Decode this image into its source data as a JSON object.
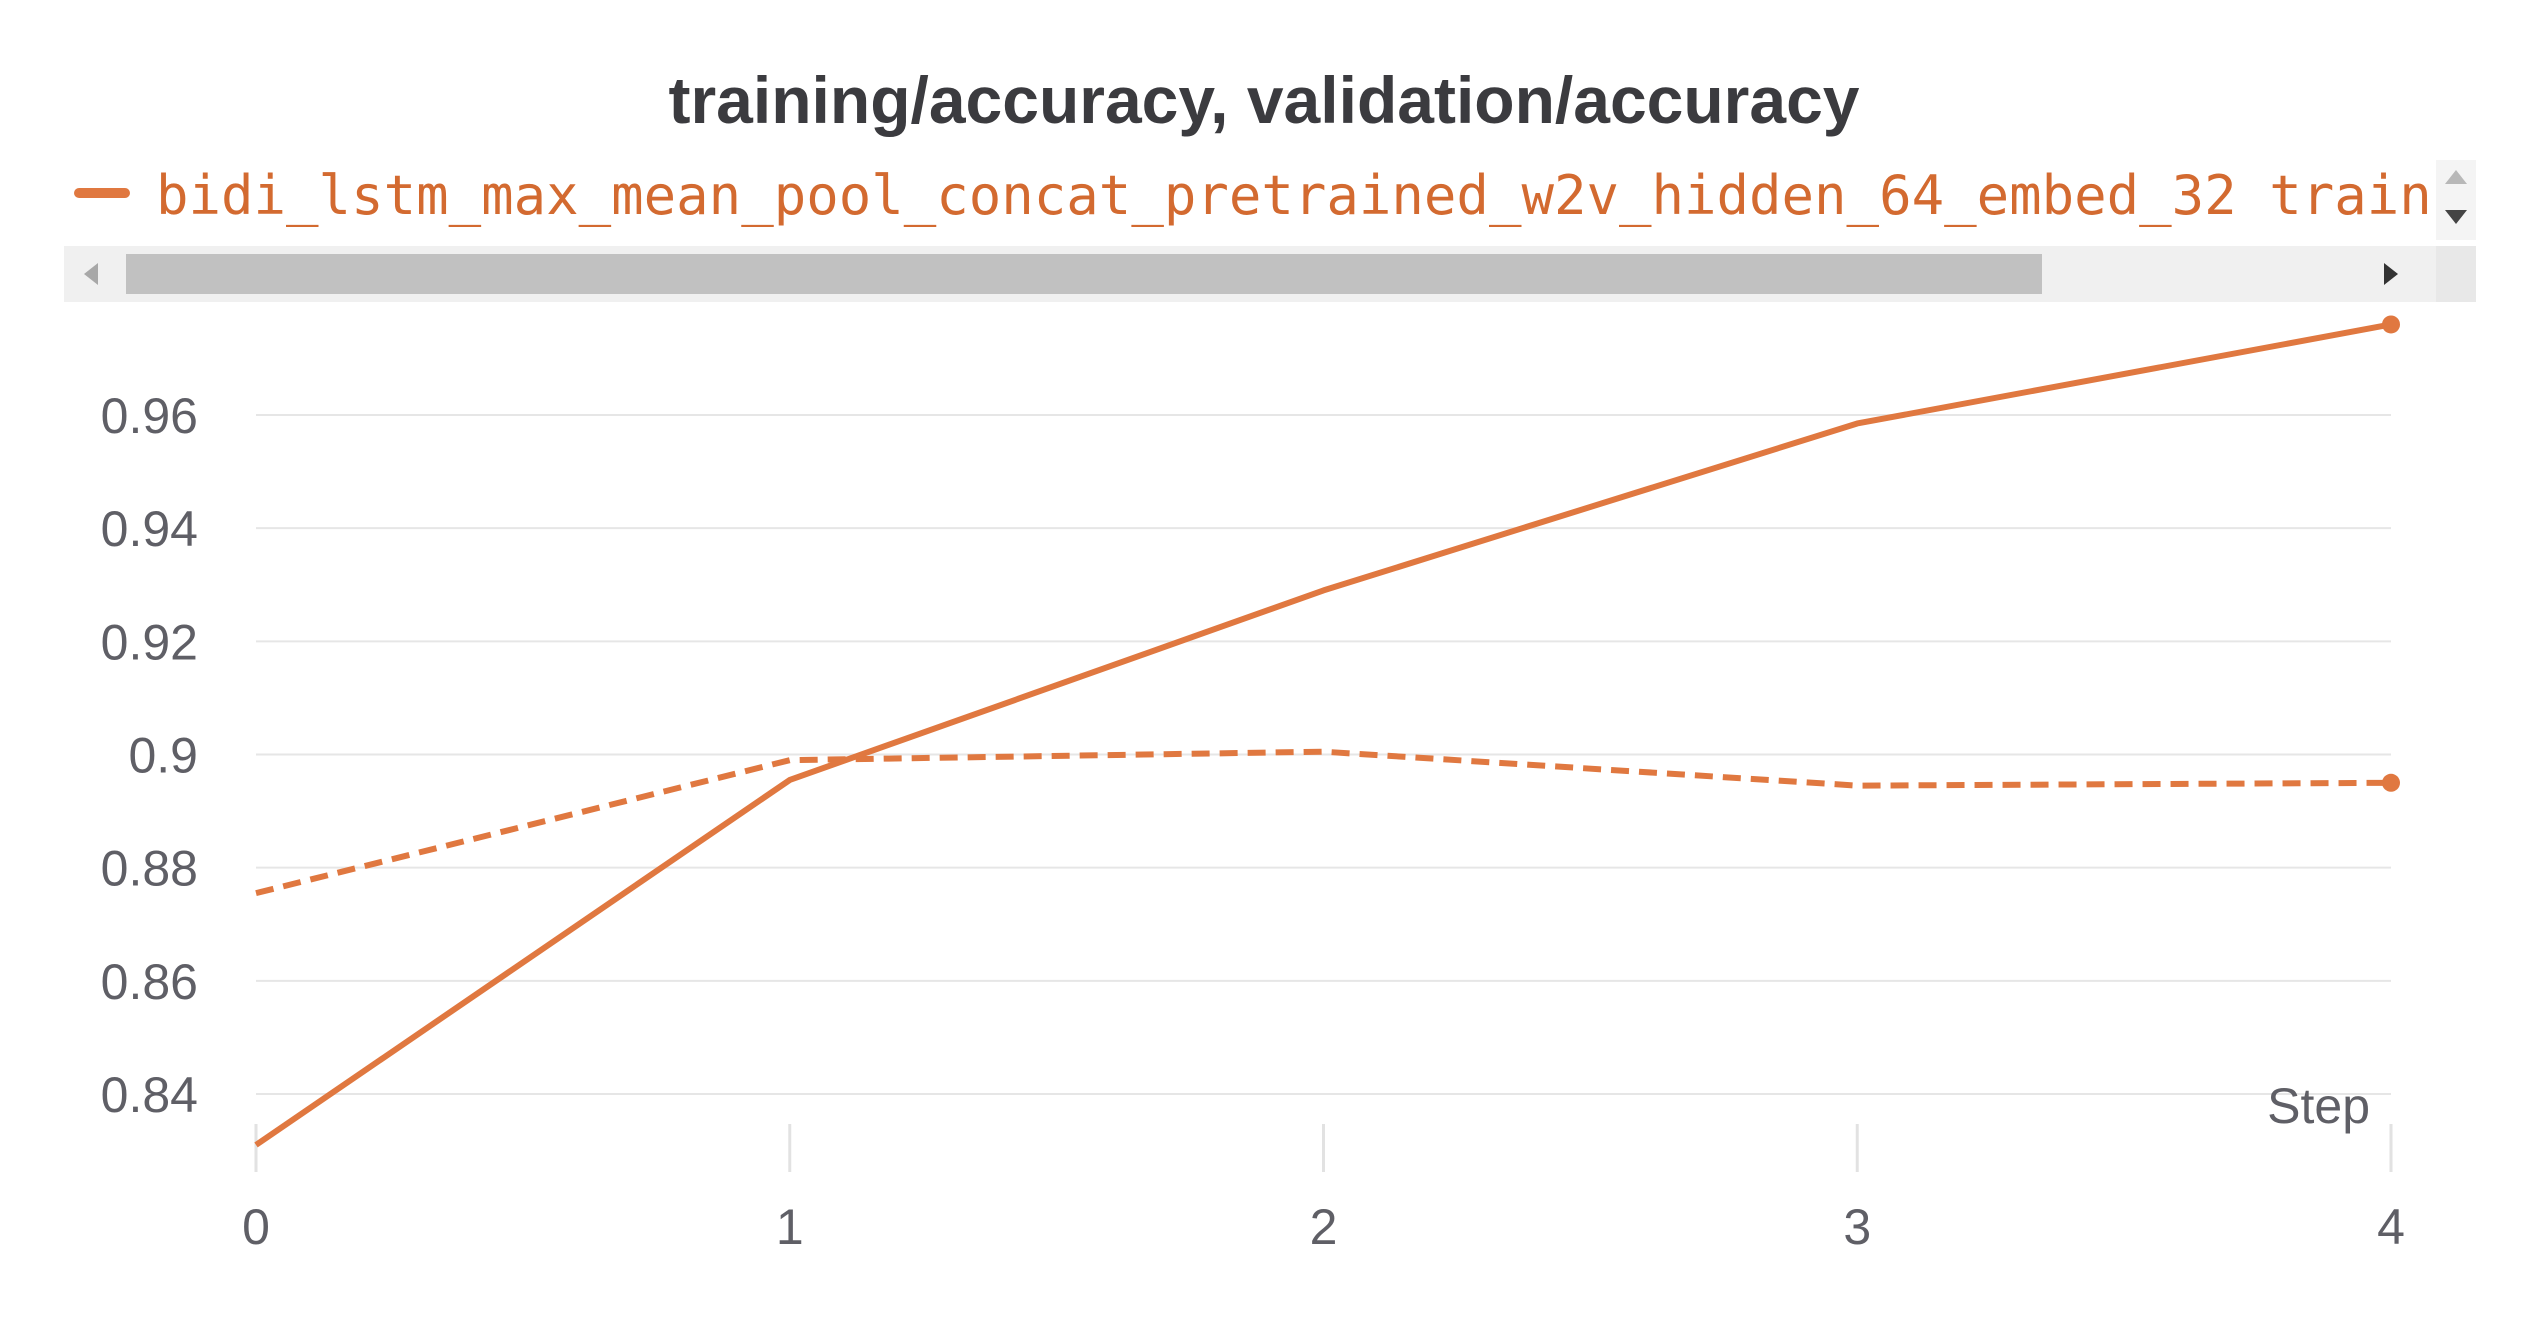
{
  "chart_data": {
    "type": "line",
    "title": "training/accuracy, validation/accuracy",
    "xlabel": "Step",
    "ylabel": "",
    "legend": {
      "entries": [
        "bidi_lstm_max_mean_pool_concat_pretrained_w2v_hidden_64_embed_32 train"
      ],
      "placement": "top"
    },
    "x": [
      0,
      1,
      2,
      3,
      4
    ],
    "xlim": [
      0,
      4
    ],
    "ylim": [
      0.83,
      0.976
    ],
    "xticks": [
      "0",
      "1",
      "2",
      "3",
      "4"
    ],
    "yticks": [
      "0.84",
      "0.86",
      "0.88",
      "0.9",
      "0.92",
      "0.94",
      "0.96"
    ],
    "grid": "horizontal",
    "series": [
      {
        "values": [
          0.831,
          0.8955,
          0.929,
          0.9585,
          0.976
        ],
        "style": "solid",
        "color": "#e07840"
      },
      {
        "values": [
          0.8755,
          0.899,
          0.9005,
          0.8945,
          0.895
        ],
        "style": "dashed",
        "color": "#e07840"
      }
    ]
  }
}
